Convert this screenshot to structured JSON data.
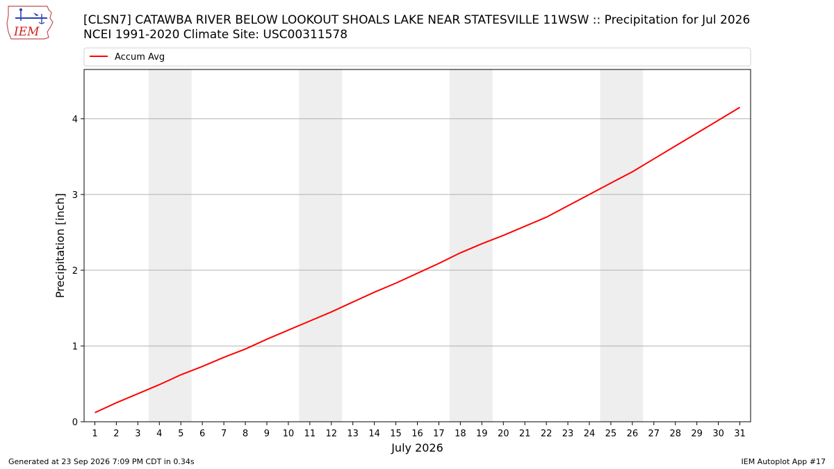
{
  "logo": {
    "text": "IEM",
    "icon": "iowa-state-outline-with-weather-instruments-icon"
  },
  "title_line1": "[CLSN7] CATAWBA RIVER BELOW LOOKOUT SHOALS LAKE NEAR STATESVILLE 11WSW :: Precipitation for Jul 2026",
  "title_line2": "NCEI 1991-2020 Climate Site: USC00311578",
  "footer": {
    "generated": "Generated at 23 Sep 2026 7:09 PM CDT in 0.34s",
    "app": "IEM Autoplot App #17"
  },
  "chart_data": {
    "type": "line",
    "xlabel": "July 2026",
    "ylabel": "Precipitation [inch]",
    "xlim": [
      0.5,
      31.5
    ],
    "ylim": [
      0,
      4.65
    ],
    "xticks": [
      1,
      2,
      3,
      4,
      5,
      6,
      7,
      8,
      9,
      10,
      11,
      12,
      13,
      14,
      15,
      16,
      17,
      18,
      19,
      20,
      21,
      22,
      23,
      24,
      25,
      26,
      27,
      28,
      29,
      30,
      31
    ],
    "yticks": [
      0,
      1,
      2,
      3,
      4
    ],
    "grid": "horizontal",
    "legend": "top",
    "weekend_bands": [
      [
        3.5,
        5.5
      ],
      [
        10.5,
        12.5
      ],
      [
        17.5,
        19.5
      ],
      [
        24.5,
        26.5
      ]
    ],
    "band_color": "#eeeeee",
    "series": [
      {
        "name": "Accum Avg",
        "color": "#ff0000",
        "x": [
          1,
          2,
          3,
          4,
          5,
          6,
          7,
          8,
          9,
          10,
          11,
          12,
          13,
          14,
          15,
          16,
          17,
          18,
          19,
          20,
          21,
          22,
          23,
          24,
          25,
          26,
          27,
          28,
          29,
          30,
          31
        ],
        "values": [
          0.12,
          0.25,
          0.37,
          0.49,
          0.62,
          0.73,
          0.85,
          0.96,
          1.09,
          1.21,
          1.33,
          1.45,
          1.58,
          1.71,
          1.83,
          1.96,
          2.09,
          2.23,
          2.35,
          2.46,
          2.58,
          2.7,
          2.85,
          3.0,
          3.15,
          3.3,
          3.47,
          3.64,
          3.81,
          3.98,
          4.15
        ]
      }
    ]
  }
}
